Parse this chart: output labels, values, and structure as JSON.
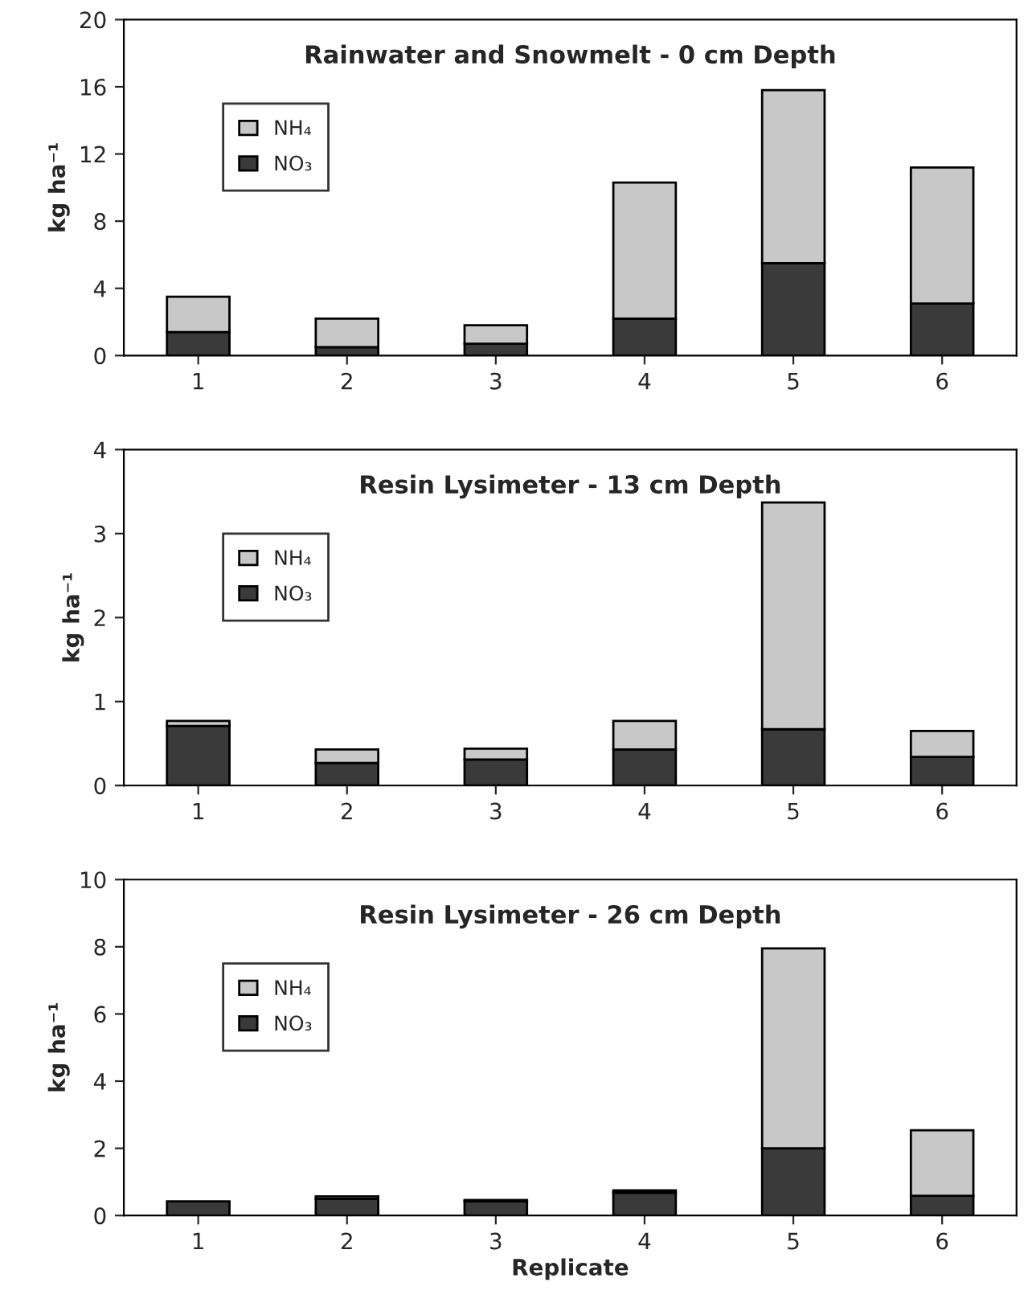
{
  "chart_data": [
    {
      "type": "bar",
      "title": "Rainwater and Snowmelt - 0 cm Depth",
      "ylabel": "kg ha⁻¹",
      "categories": [
        "1",
        "2",
        "3",
        "4",
        "5",
        "6"
      ],
      "stacked": true,
      "legend": "top left",
      "ylim": [
        0,
        20
      ],
      "yticks": [
        0,
        4,
        8,
        12,
        16,
        20
      ],
      "series": [
        {
          "name": "NO₃",
          "color": "#3a3a3a",
          "values": [
            1.4,
            0.5,
            0.7,
            2.2,
            5.5,
            3.1
          ]
        },
        {
          "name": "NH₄",
          "color": "#c8c8c8",
          "values": [
            2.1,
            1.7,
            1.1,
            8.1,
            10.3,
            8.1
          ]
        }
      ]
    },
    {
      "type": "bar",
      "title": "Resin Lysimeter - 13 cm Depth",
      "ylabel": "kg ha⁻¹",
      "categories": [
        "1",
        "2",
        "3",
        "4",
        "5",
        "6"
      ],
      "stacked": true,
      "legend": "top left",
      "ylim": [
        0,
        4
      ],
      "yticks": [
        0,
        1,
        2,
        3,
        4
      ],
      "series": [
        {
          "name": "NO₃",
          "color": "#3a3a3a",
          "values": [
            0.71,
            0.27,
            0.31,
            0.43,
            0.67,
            0.34
          ]
        },
        {
          "name": "NH₄",
          "color": "#c8c8c8",
          "values": [
            0.06,
            0.16,
            0.13,
            0.34,
            2.7,
            0.31
          ]
        }
      ]
    },
    {
      "type": "bar",
      "title": "Resin Lysimeter - 26 cm Depth",
      "ylabel": "kg ha⁻¹",
      "xlabel": "Replicate",
      "categories": [
        "1",
        "2",
        "3",
        "4",
        "5",
        "6"
      ],
      "stacked": true,
      "legend": "top left",
      "ylim": [
        0,
        10
      ],
      "yticks": [
        0,
        2,
        4,
        6,
        8,
        10
      ],
      "series": [
        {
          "name": "NO₃",
          "color": "#3a3a3a",
          "values": [
            0.42,
            0.5,
            0.42,
            0.68,
            2.0,
            0.59
          ]
        },
        {
          "name": "NH₄",
          "color": "#c8c8c8",
          "values": [
            null,
            0.07,
            0.04,
            0.07,
            5.95,
            1.95
          ]
        }
      ]
    }
  ]
}
